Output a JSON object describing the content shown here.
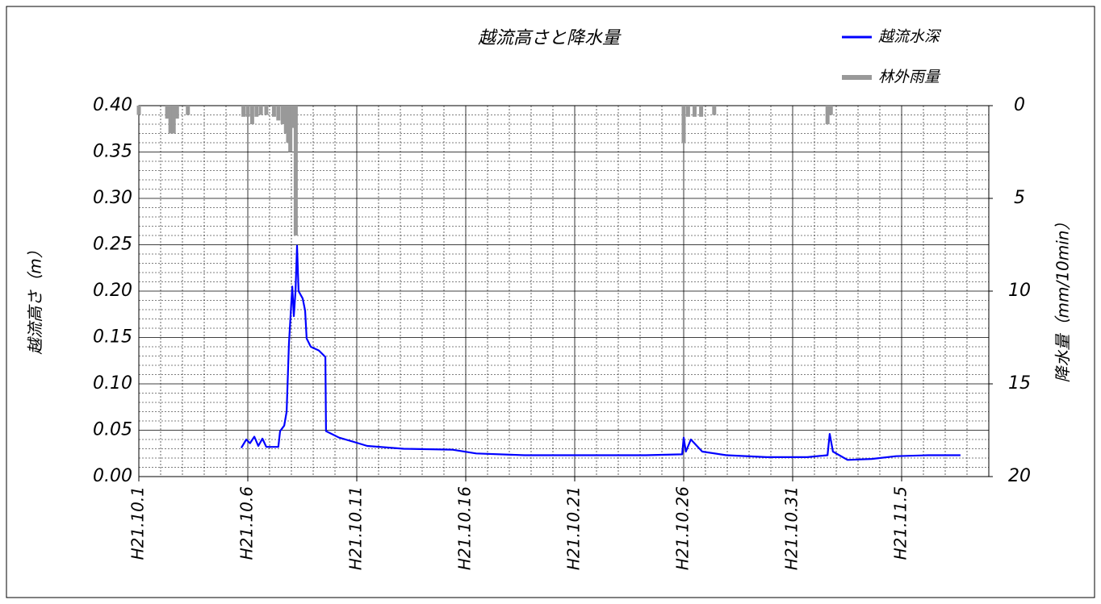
{
  "chart_data": {
    "type": "line",
    "title": "越流高さと降水量",
    "y_label": "越流高さ（m）",
    "y2_label": "降水量（mm/10min）",
    "xlim": [
      0,
      39
    ],
    "xticks": [
      {
        "value": 0,
        "label": "H21.10.1"
      },
      {
        "value": 5,
        "label": "H21.10.6"
      },
      {
        "value": 10,
        "label": "H21.10.11"
      },
      {
        "value": 15,
        "label": "H21.10.16"
      },
      {
        "value": 20,
        "label": "H21.10.21"
      },
      {
        "value": 25,
        "label": "H21.10.26"
      },
      {
        "value": 30,
        "label": "H21.10.31"
      },
      {
        "value": 35,
        "label": "H21.11.5"
      }
    ],
    "xminorticks": [
      1,
      2,
      3,
      4,
      6,
      7,
      8,
      9,
      11,
      12,
      13,
      14,
      16,
      17,
      18,
      19,
      21,
      22,
      23,
      24,
      26,
      27,
      28,
      29,
      31,
      32,
      33,
      34,
      36,
      37,
      38
    ],
    "ylim": [
      0,
      0.4
    ],
    "yticks": [
      {
        "value": 0,
        "label": "0.00"
      },
      {
        "value": 0.05,
        "label": "0.05"
      },
      {
        "value": 0.1,
        "label": "0.10"
      },
      {
        "value": 0.15,
        "label": "0.15"
      },
      {
        "value": 0.2,
        "label": "0.20"
      },
      {
        "value": 0.25,
        "label": "0.25"
      },
      {
        "value": 0.3,
        "label": "0.30"
      },
      {
        "value": 0.35,
        "label": "0.35"
      },
      {
        "value": 0.4,
        "label": "0.40"
      }
    ],
    "yminorticks": [
      0.01,
      0.02,
      0.03,
      0.04,
      0.06,
      0.07,
      0.08,
      0.09,
      0.11,
      0.12,
      0.13,
      0.14,
      0.16,
      0.17,
      0.18,
      0.19,
      0.21,
      0.22,
      0.23,
      0.24,
      0.26,
      0.27,
      0.28,
      0.29,
      0.31,
      0.32,
      0.33,
      0.34,
      0.36,
      0.37,
      0.38,
      0.39
    ],
    "y2lim": [
      0,
      20
    ],
    "y2ticks": [
      0,
      5,
      10,
      15,
      20
    ],
    "y2_inverted": true,
    "grid": true,
    "legend": "upper right",
    "series": [
      {
        "name": "越流水深",
        "color": "#0000ff",
        "type": "line",
        "x": [
          4.7,
          4.93,
          5.1,
          5.3,
          5.48,
          5.67,
          5.85,
          6.4,
          6.48,
          6.67,
          6.78,
          6.89,
          7.04,
          7.11,
          7.19,
          7.26,
          7.33,
          7.52,
          7.63,
          7.7,
          7.89,
          8.26,
          8.56,
          8.59,
          9.19,
          9.93,
          10.48,
          12.15,
          14.37,
          15.48,
          17.7,
          19.56,
          23.26,
          24.93,
          25.0,
          25.1,
          25.33,
          25.85,
          26.96,
          28.81,
          30.67,
          31.6,
          31.7,
          31.85,
          32.52,
          33.63,
          34.74,
          36.22,
          37.7
        ],
        "values": [
          0.031,
          0.04,
          0.036,
          0.043,
          0.033,
          0.041,
          0.032,
          0.032,
          0.049,
          0.055,
          0.07,
          0.144,
          0.205,
          0.173,
          0.2,
          0.249,
          0.2,
          0.192,
          0.179,
          0.149,
          0.14,
          0.136,
          0.129,
          0.049,
          0.042,
          0.037,
          0.033,
          0.03,
          0.029,
          0.025,
          0.023,
          0.023,
          0.023,
          0.024,
          0.042,
          0.027,
          0.04,
          0.027,
          0.023,
          0.021,
          0.021,
          0.023,
          0.046,
          0.027,
          0.018,
          0.019,
          0.022,
          0.023,
          0.023
        ]
      },
      {
        "name": "林外雨量",
        "color": "#999999",
        "type": "bar",
        "axis": "y2",
        "x": [
          0,
          1.3,
          1.45,
          1.6,
          1.75,
          2.25,
          4.8,
          5.0,
          5.2,
          5.4,
          5.6,
          5.85,
          6.2,
          6.4,
          6.6,
          6.75,
          6.85,
          6.95,
          7.05,
          7.2,
          25.0,
          25.2,
          25.5,
          25.8,
          26.4,
          31.6,
          31.75
        ],
        "values": [
          0.5,
          0.7,
          1.5,
          1.5,
          0.7,
          0.5,
          0.6,
          0.6,
          1.0,
          0.6,
          0.5,
          0.5,
          0.6,
          0.8,
          1.0,
          1.5,
          2.0,
          2.5,
          1.2,
          7.0,
          2.0,
          0.6,
          0.6,
          0.6,
          0.5,
          1.0,
          0.5
        ]
      }
    ]
  }
}
